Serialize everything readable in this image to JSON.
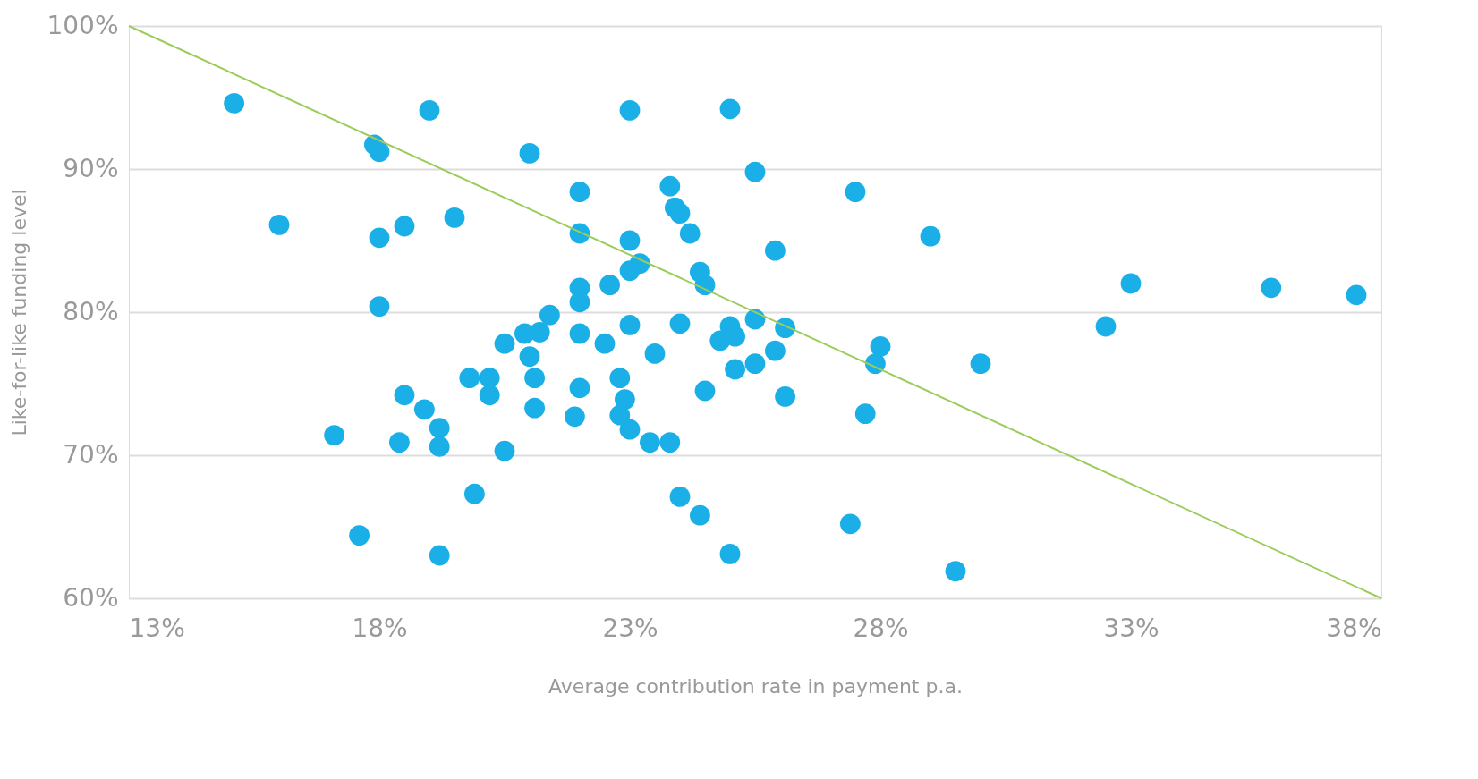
{
  "chart_data": {
    "type": "scatter",
    "xlabel": "Average contribution rate in payment p.a.",
    "ylabel": "Like-for-like funding level",
    "xlim": [
      13,
      38
    ],
    "ylim": [
      60,
      100
    ],
    "xticks": [
      {
        "value": 13,
        "label": "13%"
      },
      {
        "value": 18,
        "label": "18%"
      },
      {
        "value": 23,
        "label": "23%"
      },
      {
        "value": 28,
        "label": "28%"
      },
      {
        "value": 33,
        "label": "33%"
      },
      {
        "value": 38,
        "label": "38%"
      }
    ],
    "yticks": [
      {
        "value": 60,
        "label": "60%"
      },
      {
        "value": 70,
        "label": "70%"
      },
      {
        "value": 80,
        "label": "80%"
      },
      {
        "value": 90,
        "label": "90%"
      },
      {
        "value": 100,
        "label": "100%"
      }
    ],
    "grid": "y",
    "marker": "circle",
    "legend": false,
    "series": [
      {
        "color": "#1aafe6",
        "x": [
          15.1,
          16.0,
          17.9,
          18.0,
          18.0,
          18.5,
          18.0,
          19.0,
          19.5,
          21.0,
          22.0,
          22.0,
          23.0,
          25.0,
          25.5,
          23.8,
          23.9,
          24.0,
          24.2,
          23.0,
          23.2,
          23.0,
          22.6,
          22.0,
          22.0,
          24.4,
          24.5,
          25.9,
          27.5,
          29.0,
          33.0,
          32.5,
          35.8,
          37.5,
          21.4,
          21.2,
          20.9,
          20.5,
          21.0,
          21.1,
          19.8,
          20.2,
          20.2,
          21.1,
          22.0,
          22.5,
          23.0,
          23.5,
          24.0,
          22.0,
          21.9,
          22.8,
          22.9,
          22.8,
          23.0,
          23.4,
          23.8,
          24.5,
          24.8,
          25.0,
          25.1,
          25.1,
          25.5,
          25.5,
          25.9,
          26.1,
          26.1,
          28.0,
          27.9,
          27.7,
          30.0,
          18.5,
          18.9,
          19.2,
          19.2,
          17.1,
          18.4,
          20.5,
          19.9,
          17.6,
          19.2,
          24.0,
          24.4,
          25.0,
          27.4,
          29.5
        ],
        "values": [
          94.6,
          86.1,
          91.7,
          91.2,
          85.2,
          86.0,
          80.4,
          94.1,
          86.6,
          91.1,
          88.4,
          85.5,
          94.1,
          94.2,
          89.8,
          88.8,
          87.3,
          86.9,
          85.5,
          85.0,
          83.4,
          82.9,
          81.9,
          81.7,
          80.7,
          82.8,
          81.9,
          84.3,
          88.4,
          85.3,
          82.0,
          79.0,
          81.7,
          81.2,
          79.8,
          78.6,
          78.5,
          77.8,
          76.9,
          75.4,
          75.4,
          75.4,
          74.2,
          73.3,
          78.5,
          77.8,
          79.1,
          77.1,
          79.2,
          74.7,
          72.7,
          75.4,
          73.9,
          72.8,
          71.8,
          70.9,
          70.9,
          74.5,
          78.0,
          79.0,
          78.3,
          76.0,
          79.5,
          76.4,
          77.3,
          78.9,
          74.1,
          77.6,
          76.4,
          72.9,
          76.4,
          74.2,
          73.2,
          71.9,
          70.6,
          71.4,
          70.9,
          70.3,
          67.3,
          64.4,
          63.0,
          67.1,
          65.8,
          63.1,
          65.2,
          61.9
        ]
      },
      {
        "type": "line",
        "color": "#9ccc5c",
        "x": [
          13,
          38
        ],
        "values": [
          100,
          60
        ],
        "marker": "none"
      }
    ]
  }
}
